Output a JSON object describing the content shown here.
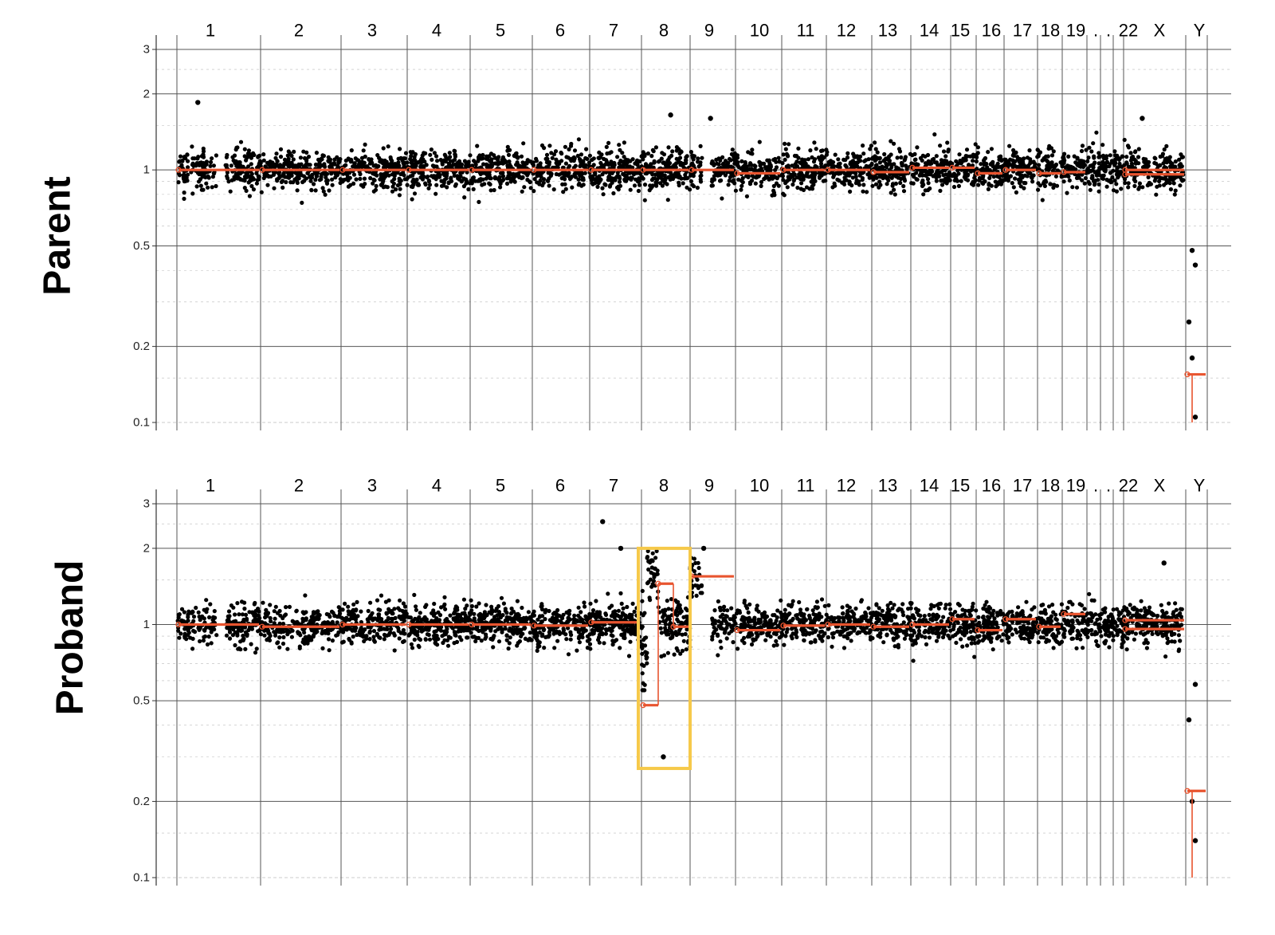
{
  "figure": {
    "colors": {
      "points": "#000000",
      "segments": "#e8542f",
      "grid_major": "#555555",
      "grid_minor": "#bbbbbb",
      "highlight": "#f6c94a"
    }
  },
  "chart_data": [
    {
      "type": "scatter",
      "title": "Parent",
      "y_scale": "log",
      "ylim": [
        0.1,
        3
      ],
      "y_ticks": [
        "0.1",
        "0.2",
        "0.5",
        "1",
        "2",
        "3"
      ],
      "chromosome_labels": [
        "1",
        "2",
        "3",
        "4",
        "5",
        "6",
        "7",
        "8",
        "9",
        "10",
        "11",
        "12",
        "13",
        "14",
        "15",
        "16",
        "17",
        "18",
        "19",
        ".",
        ".",
        "22",
        "X",
        "Y"
      ],
      "series": [
        {
          "kind": "points",
          "baseline": 1.0,
          "notable_points": [
            {
              "chromosome": "1",
              "y": 1.85
            },
            {
              "chromosome": "8",
              "y": 1.65
            },
            {
              "chromosome": "9",
              "y": 1.6
            },
            {
              "chromosome": "X",
              "y": 1.6
            },
            {
              "chromosome": "Y",
              "y": 0.48
            },
            {
              "chromosome": "Y",
              "y": 0.42
            },
            {
              "chromosome": "Y",
              "y": 0.25
            },
            {
              "chromosome": "Y",
              "y": 0.18
            },
            {
              "chromosome": "Y",
              "y": 0.105
            }
          ]
        },
        {
          "kind": "segments",
          "segments": [
            {
              "chromosome": "1",
              "y": 1.0
            },
            {
              "chromosome": "2",
              "y": 1.0
            },
            {
              "chromosome": "3",
              "y": 1.0
            },
            {
              "chromosome": "4",
              "y": 1.0
            },
            {
              "chromosome": "5",
              "y": 1.0
            },
            {
              "chromosome": "6",
              "y": 1.0
            },
            {
              "chromosome": "7",
              "y": 1.0
            },
            {
              "chromosome": "8",
              "y": 1.0
            },
            {
              "chromosome": "9",
              "y": 1.0
            },
            {
              "chromosome": "10",
              "y": 0.97
            },
            {
              "chromosome": "11",
              "y": 1.0
            },
            {
              "chromosome": "12",
              "y": 1.0
            },
            {
              "chromosome": "13",
              "y": 0.98
            },
            {
              "chromosome": "14",
              "y": 1.02
            },
            {
              "chromosome": "15",
              "y": 1.02
            },
            {
              "chromosome": "16",
              "y": 0.97
            },
            {
              "chromosome": "17",
              "y": 1.0
            },
            {
              "chromosome": "18",
              "y": 0.97
            },
            {
              "chromosome": "19",
              "y": 0.98
            },
            {
              "chromosome": "22",
              "y": 1.0
            },
            {
              "chromosome": "X",
              "y": 0.96
            },
            {
              "chromosome": "Y",
              "y": 0.155
            }
          ]
        }
      ]
    },
    {
      "type": "scatter",
      "title": "Proband",
      "y_scale": "log",
      "ylim": [
        0.1,
        3
      ],
      "y_ticks": [
        "0.1",
        "0.2",
        "0.5",
        "1",
        "2",
        "3"
      ],
      "chromosome_labels": [
        "1",
        "2",
        "3",
        "4",
        "5",
        "6",
        "7",
        "8",
        "9",
        "10",
        "11",
        "12",
        "13",
        "14",
        "15",
        "16",
        "17",
        "18",
        "19",
        ".",
        ".",
        "22",
        "X",
        "Y"
      ],
      "highlight_region": {
        "chromosome": "8",
        "y_range": [
          0.27,
          2.0
        ]
      },
      "series": [
        {
          "kind": "points",
          "baseline": 1.0,
          "notable_points": [
            {
              "chromosome": "7",
              "y": 2.55
            },
            {
              "chromosome": "7",
              "y": 2.0
            },
            {
              "chromosome": "8",
              "y": 0.3
            },
            {
              "chromosome": "9",
              "y": 2.0
            },
            {
              "chromosome": "X",
              "y": 1.75
            },
            {
              "chromosome": "Y",
              "y": 0.58
            },
            {
              "chromosome": "Y",
              "y": 0.42
            },
            {
              "chromosome": "Y",
              "y": 0.2
            },
            {
              "chromosome": "Y",
              "y": 0.14
            }
          ]
        },
        {
          "kind": "segments",
          "segments": [
            {
              "chromosome": "1",
              "y": 1.0
            },
            {
              "chromosome": "2",
              "y": 0.98
            },
            {
              "chromosome": "3",
              "y": 1.0
            },
            {
              "chromosome": "4",
              "y": 1.0
            },
            {
              "chromosome": "5",
              "y": 1.0
            },
            {
              "chromosome": "6",
              "y": 0.99
            },
            {
              "chromosome": "7",
              "y": 1.02
            },
            {
              "chromosome": "8",
              "y": 0.48
            },
            {
              "chromosome": "8",
              "y": 1.45
            },
            {
              "chromosome": "8",
              "y": 0.98
            },
            {
              "chromosome": "9",
              "y": 1.55
            },
            {
              "chromosome": "10",
              "y": 0.95
            },
            {
              "chromosome": "11",
              "y": 0.99
            },
            {
              "chromosome": "12",
              "y": 1.0
            },
            {
              "chromosome": "13",
              "y": 0.98
            },
            {
              "chromosome": "14",
              "y": 1.0
            },
            {
              "chromosome": "15",
              "y": 1.05
            },
            {
              "chromosome": "16",
              "y": 0.95
            },
            {
              "chromosome": "17",
              "y": 1.05
            },
            {
              "chromosome": "18",
              "y": 0.98
            },
            {
              "chromosome": "19",
              "y": 1.1
            },
            {
              "chromosome": "22",
              "y": 1.04
            },
            {
              "chromosome": "X",
              "y": 0.96
            },
            {
              "chromosome": "Y",
              "y": 0.22
            }
          ]
        }
      ]
    }
  ]
}
